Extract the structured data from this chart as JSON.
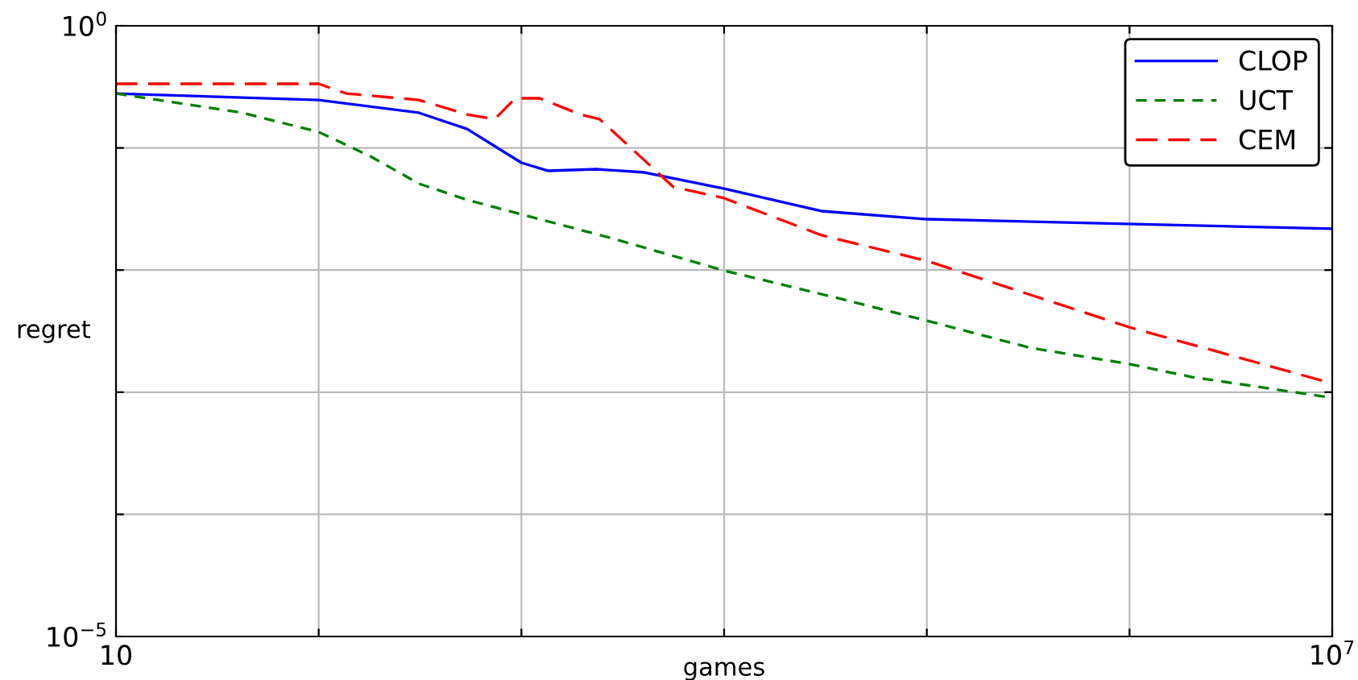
{
  "chart_data": {
    "type": "line",
    "xlabel": "games",
    "ylabel": "regret",
    "log": "xy",
    "grid": true,
    "legend": "top right",
    "xlim": [
      10,
      10000000
    ],
    "ylim": [
      1e-05,
      1
    ],
    "xticks": [
      {
        "value": 10,
        "label": "10"
      },
      {
        "value": 100,
        "label": null
      },
      {
        "value": 1000,
        "label": null
      },
      {
        "value": 10000,
        "label": null
      },
      {
        "value": 100000,
        "label": null
      },
      {
        "value": 1000000,
        "label": null
      },
      {
        "value": 10000000,
        "label": "10$^{7}$"
      }
    ],
    "yticks": [
      {
        "value": 1e-05,
        "label": "10$^{−5}$"
      },
      {
        "value": 0.0001,
        "label": null
      },
      {
        "value": 0.001,
        "label": null
      },
      {
        "value": 0.01,
        "label": null
      },
      {
        "value": 0.1,
        "label": null
      },
      {
        "value": 1,
        "label": "10$^{0}$"
      }
    ],
    "series": [
      {
        "name": "CLOP",
        "color": "#0000ff",
        "line_style": "solid",
        "x": [
          10,
          100,
          312,
          540,
          1000,
          1350,
          2340,
          4050,
          10000,
          30200,
          100000,
          10000000
        ],
        "values": [
          0.279,
          0.247,
          0.194,
          0.143,
          0.0756,
          0.065,
          0.067,
          0.063,
          0.0465,
          0.0304,
          0.0261,
          0.0218
        ]
      },
      {
        "name": "UCT",
        "color": "#008000",
        "line_style": "dashed",
        "x": [
          10,
          42,
          100,
          180,
          312,
          540,
          1000,
          2800,
          10000,
          36300,
          100000,
          327000,
          1000000,
          2040000,
          10000000
        ],
        "values": [
          0.279,
          0.194,
          0.135,
          0.0854,
          0.051,
          0.0376,
          0.0286,
          0.0182,
          0.0099,
          0.0059,
          0.00385,
          0.0023,
          0.0017,
          0.00133,
          0.0009
        ]
      },
      {
        "name": "CEM",
        "color": "#ff0000",
        "line_style": "longdashed",
        "x": [
          10,
          100,
          137,
          312,
          540,
          738,
          935,
          1230,
          1950,
          2430,
          5620,
          10000,
          30200,
          100000,
          1000000,
          10000000
        ],
        "values": [
          0.335,
          0.335,
          0.279,
          0.247,
          0.188,
          0.172,
          0.255,
          0.255,
          0.188,
          0.172,
          0.048,
          0.0388,
          0.0193,
          0.0119,
          0.0034,
          0.00118
        ]
      }
    ]
  }
}
